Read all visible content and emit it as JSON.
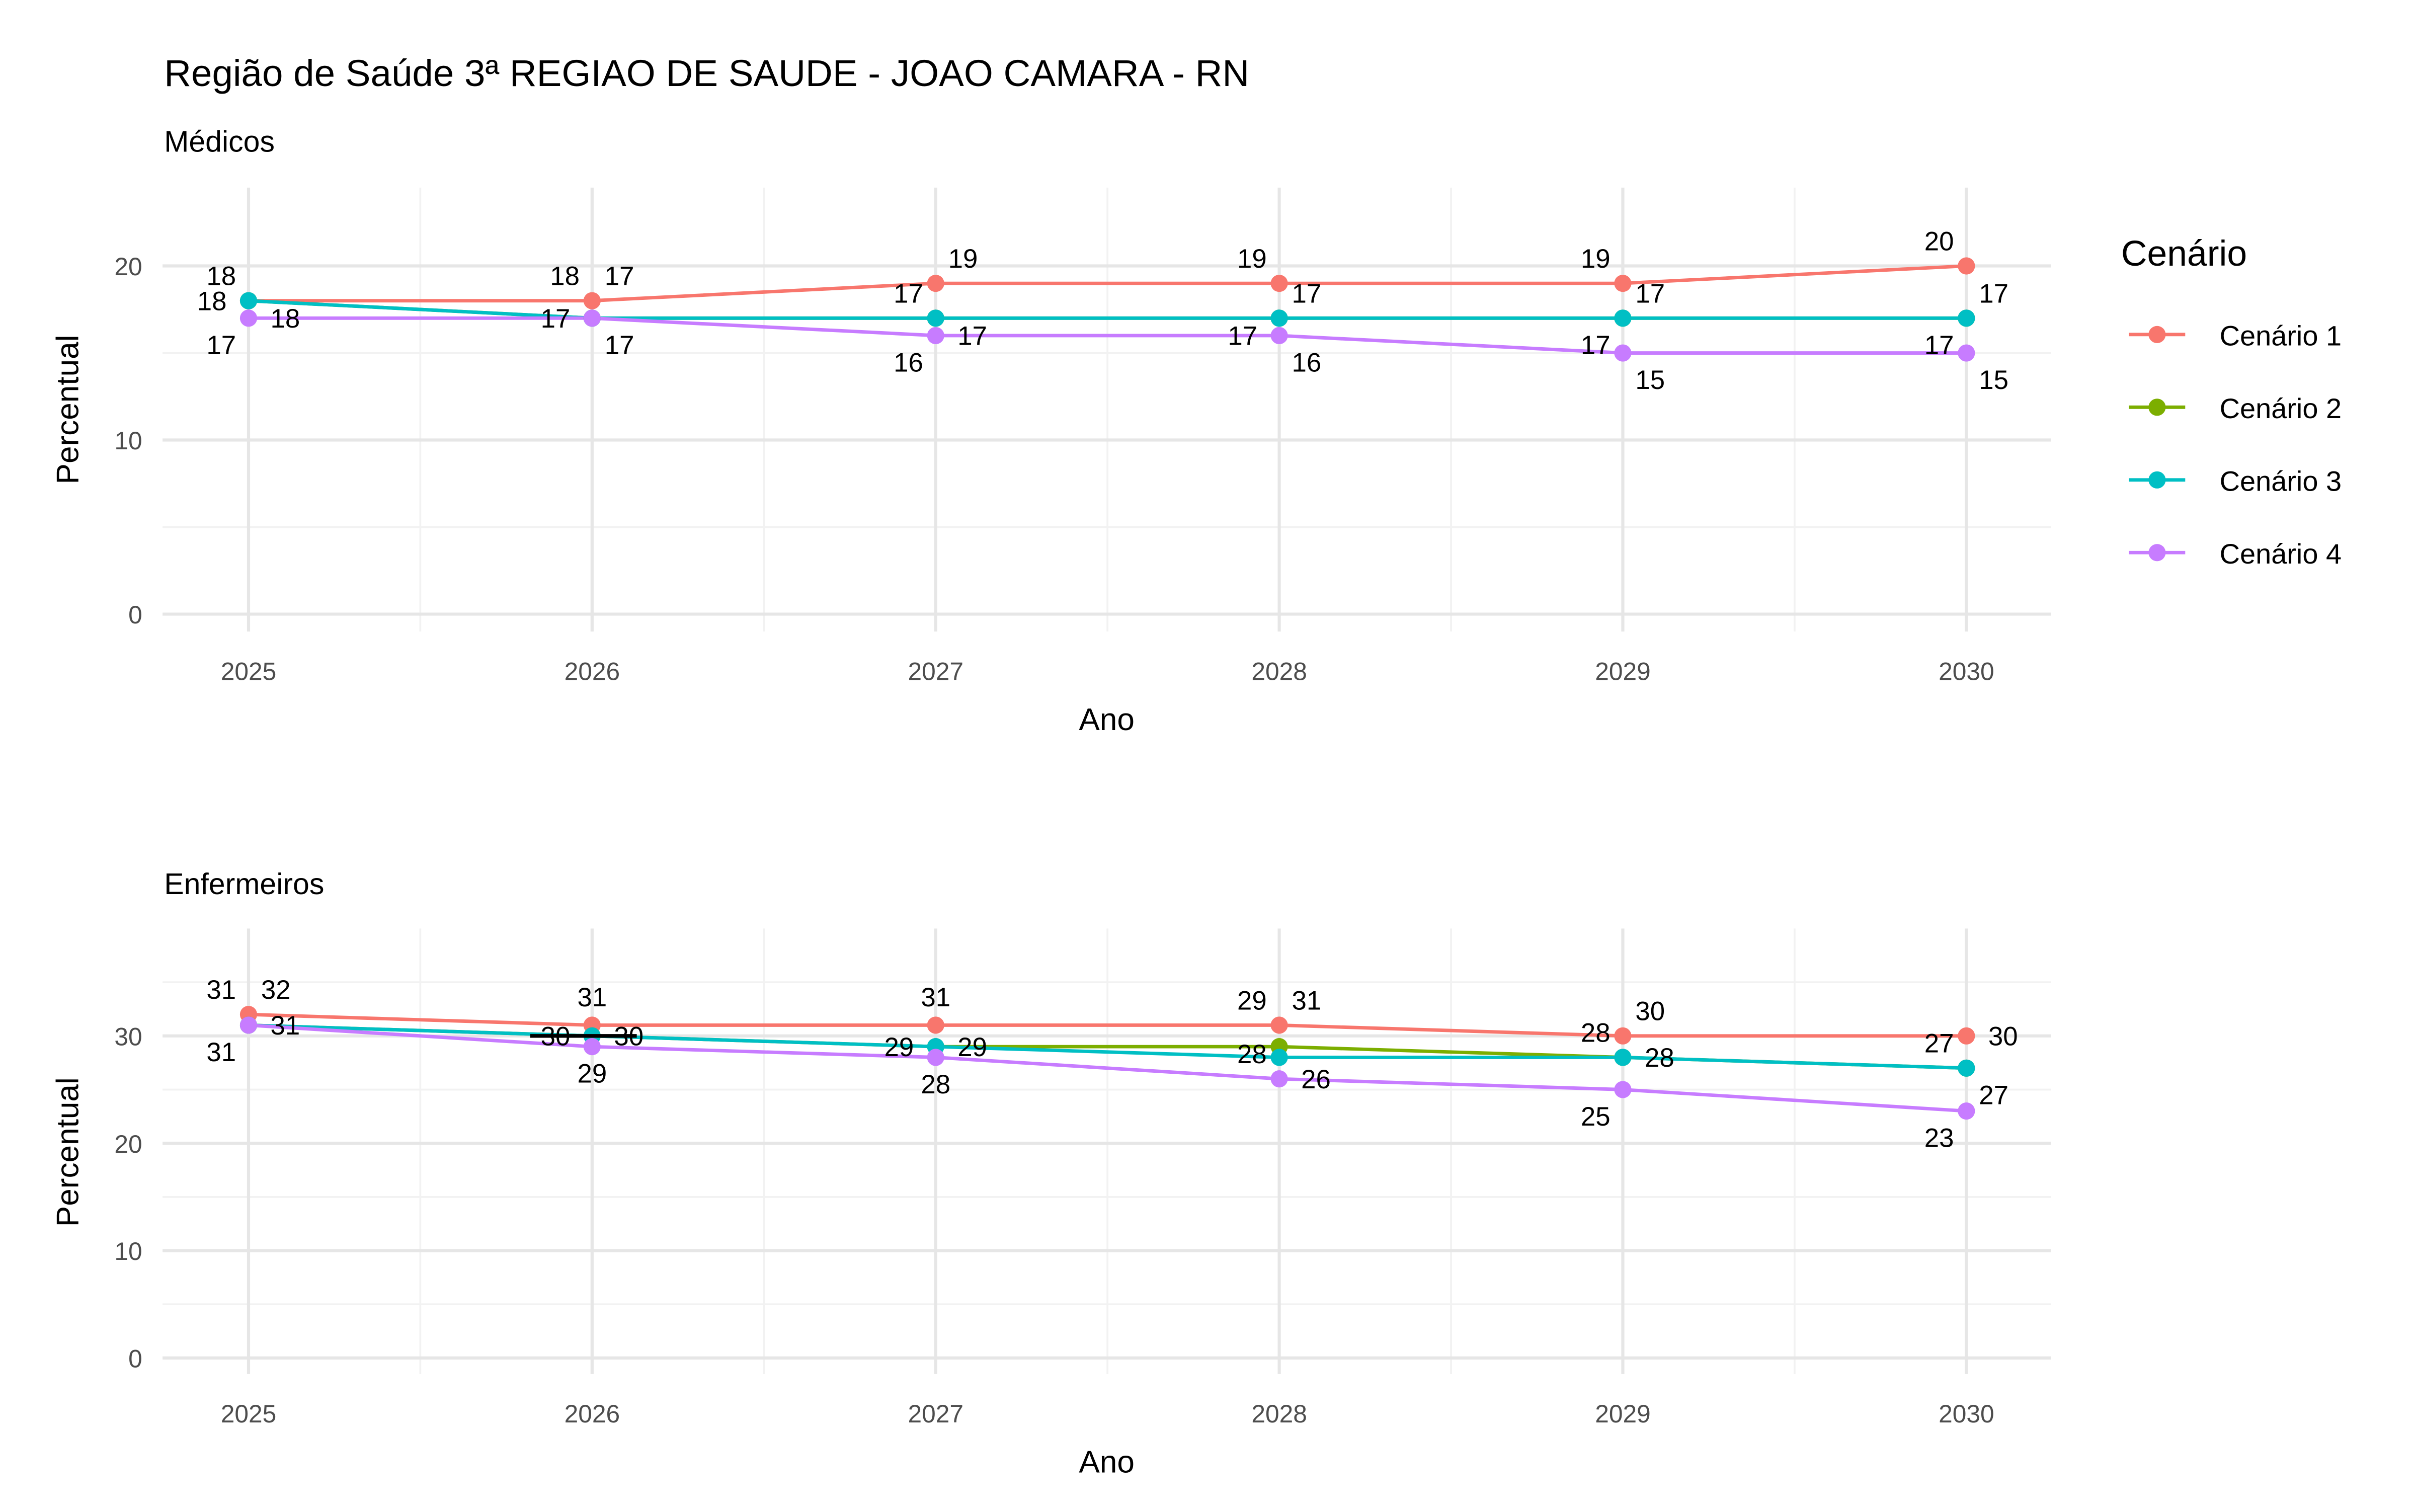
{
  "title": "Região de Saúde 3ª REGIAO DE SAUDE - JOAO CAMARA - RN",
  "legend": {
    "title": "Cenário",
    "position": "right",
    "items": [
      "Cenário 1",
      "Cenário 2",
      "Cenário 3",
      "Cenário 4"
    ]
  },
  "colors": {
    "Cenário 1": "#F8766D",
    "Cenário 2": "#7CAE00",
    "Cenário 3": "#00BFC4",
    "Cenário 4": "#C77CFF"
  },
  "chart_data": [
    {
      "type": "line",
      "subtitle": "Médicos",
      "xlabel": "Ano",
      "ylabel": "Percentual",
      "x": [
        2025,
        2026,
        2027,
        2028,
        2029,
        2030
      ],
      "ylim": [
        -1,
        24.5
      ],
      "yticks": [
        0,
        10,
        20
      ],
      "grid": true,
      "series": [
        {
          "name": "Cenário 1",
          "values": [
            18,
            18,
            19,
            19,
            19,
            20
          ]
        },
        {
          "name": "Cenário 2",
          "values": [
            18,
            17,
            17,
            17,
            17,
            17
          ]
        },
        {
          "name": "Cenário 3",
          "values": [
            18,
            17,
            17,
            17,
            17,
            17
          ]
        },
        {
          "name": "Cenário 4",
          "values": [
            17,
            17,
            16,
            16,
            15,
            15
          ]
        }
      ],
      "labels": [
        {
          "x": 2025,
          "y": 18,
          "text": "18",
          "pos": "ul"
        },
        {
          "x": 2025,
          "y": 18,
          "text": "18",
          "pos": "l"
        },
        {
          "x": 2025,
          "y": 17,
          "text": "18",
          "pos": "r"
        },
        {
          "x": 2025,
          "y": 17,
          "text": "17",
          "pos": "dl"
        },
        {
          "x": 2026,
          "y": 18,
          "text": "18",
          "pos": "ul"
        },
        {
          "x": 2026,
          "y": 18,
          "text": "17",
          "pos": "ur"
        },
        {
          "x": 2026,
          "y": 17,
          "text": "17",
          "pos": "l"
        },
        {
          "x": 2026,
          "y": 17,
          "text": "17",
          "pos": "dr"
        },
        {
          "x": 2027,
          "y": 19,
          "text": "19",
          "pos": "ur"
        },
        {
          "x": 2027,
          "y": 17,
          "text": "17",
          "pos": "ul"
        },
        {
          "x": 2027,
          "y": 16,
          "text": "17",
          "pos": "r"
        },
        {
          "x": 2027,
          "y": 16,
          "text": "16",
          "pos": "dl"
        },
        {
          "x": 2028,
          "y": 19,
          "text": "19",
          "pos": "ul"
        },
        {
          "x": 2028,
          "y": 17,
          "text": "17",
          "pos": "ur"
        },
        {
          "x": 2028,
          "y": 16,
          "text": "17",
          "pos": "l"
        },
        {
          "x": 2028,
          "y": 16,
          "text": "16",
          "pos": "dr"
        },
        {
          "x": 2029,
          "y": 19,
          "text": "19",
          "pos": "ul"
        },
        {
          "x": 2029,
          "y": 17,
          "text": "17",
          "pos": "ur"
        },
        {
          "x": 2029,
          "y": 17,
          "text": "17",
          "pos": "dl"
        },
        {
          "x": 2029,
          "y": 15,
          "text": "15",
          "pos": "dr"
        },
        {
          "x": 2030,
          "y": 20,
          "text": "20",
          "pos": "ul"
        },
        {
          "x": 2030,
          "y": 17,
          "text": "17",
          "pos": "ur"
        },
        {
          "x": 2030,
          "y": 17,
          "text": "17",
          "pos": "dl"
        },
        {
          "x": 2030,
          "y": 15,
          "text": "15",
          "pos": "dr"
        }
      ]
    },
    {
      "type": "line",
      "subtitle": "Enfermeiros",
      "xlabel": "Ano",
      "ylabel": "Percentual",
      "x": [
        2025,
        2026,
        2027,
        2028,
        2029,
        2030
      ],
      "ylim": [
        -1.5,
        40
      ],
      "yticks": [
        0,
        10,
        20,
        30
      ],
      "grid": true,
      "series": [
        {
          "name": "Cenário 1",
          "values": [
            32,
            31,
            31,
            31,
            30,
            30
          ]
        },
        {
          "name": "Cenário 2",
          "values": [
            31,
            30,
            29,
            29,
            28,
            27
          ]
        },
        {
          "name": "Cenário 3",
          "values": [
            31,
            30,
            29,
            28,
            28,
            27
          ]
        },
        {
          "name": "Cenário 4",
          "values": [
            31,
            29,
            28,
            26,
            25,
            23
          ]
        }
      ],
      "labels": [
        {
          "x": 2025,
          "y": 32,
          "text": "31",
          "pos": "ul"
        },
        {
          "x": 2025,
          "y": 32,
          "text": "32",
          "pos": "ur"
        },
        {
          "x": 2025,
          "y": 31,
          "text": "31",
          "pos": "dl"
        },
        {
          "x": 2025,
          "y": 31,
          "text": "31",
          "pos": "r"
        },
        {
          "x": 2026,
          "y": 31,
          "text": "31",
          "pos": "u"
        },
        {
          "x": 2026,
          "y": 30,
          "text": "30",
          "pos": "l"
        },
        {
          "x": 2026,
          "y": 30,
          "text": "30",
          "pos": "r"
        },
        {
          "x": 2026,
          "y": 29,
          "text": "29",
          "pos": "d"
        },
        {
          "x": 2027,
          "y": 31,
          "text": "31",
          "pos": "u"
        },
        {
          "x": 2027,
          "y": 29,
          "text": "29",
          "pos": "l"
        },
        {
          "x": 2027,
          "y": 29,
          "text": "29",
          "pos": "r"
        },
        {
          "x": 2027,
          "y": 28,
          "text": "28",
          "pos": "d"
        },
        {
          "x": 2028,
          "y": 31,
          "text": "29",
          "pos": "ul"
        },
        {
          "x": 2028,
          "y": 31,
          "text": "31",
          "pos": "ur"
        },
        {
          "x": 2028,
          "y": 26,
          "text": "28",
          "pos": "ul"
        },
        {
          "x": 2028,
          "y": 26,
          "text": "26",
          "pos": "r"
        },
        {
          "x": 2029,
          "y": 30,
          "text": "30",
          "pos": "ur"
        },
        {
          "x": 2029,
          "y": 28,
          "text": "28",
          "pos": "ul"
        },
        {
          "x": 2029,
          "y": 28,
          "text": "28",
          "pos": "r"
        },
        {
          "x": 2029,
          "y": 25,
          "text": "25",
          "pos": "dl"
        },
        {
          "x": 2030,
          "y": 30,
          "text": "30",
          "pos": "r"
        },
        {
          "x": 2030,
          "y": 27,
          "text": "27",
          "pos": "ul"
        },
        {
          "x": 2030,
          "y": 27,
          "text": "27",
          "pos": "dr"
        },
        {
          "x": 2030,
          "y": 23,
          "text": "23",
          "pos": "dl"
        }
      ],
      "segments": [
        {
          "x1": 2025.82,
          "x2": 2026.13,
          "y": 30,
          "color": "#000000"
        }
      ]
    }
  ]
}
